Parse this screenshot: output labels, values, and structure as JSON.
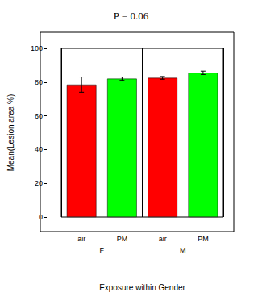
{
  "chart_data": {
    "type": "bar",
    "title": "P = 0.06",
    "x_label": "Exposure within Gender",
    "y_label": "Mean(Lesion area %)",
    "categories": [
      "air",
      "PM",
      "air",
      "PM"
    ],
    "groups": [
      "F",
      "F",
      "M",
      "M"
    ],
    "values": [
      78.5,
      82,
      82.5,
      85.5
    ],
    "errors": [
      4.5,
      1,
      0.8,
      1
    ],
    "colors": [
      "#ff0000",
      "#00ff00",
      "#ff0000",
      "#00ff00"
    ],
    "ylim": [
      0,
      100
    ],
    "yticks": [
      0,
      20,
      40,
      60,
      80,
      100
    ],
    "grid": false
  }
}
